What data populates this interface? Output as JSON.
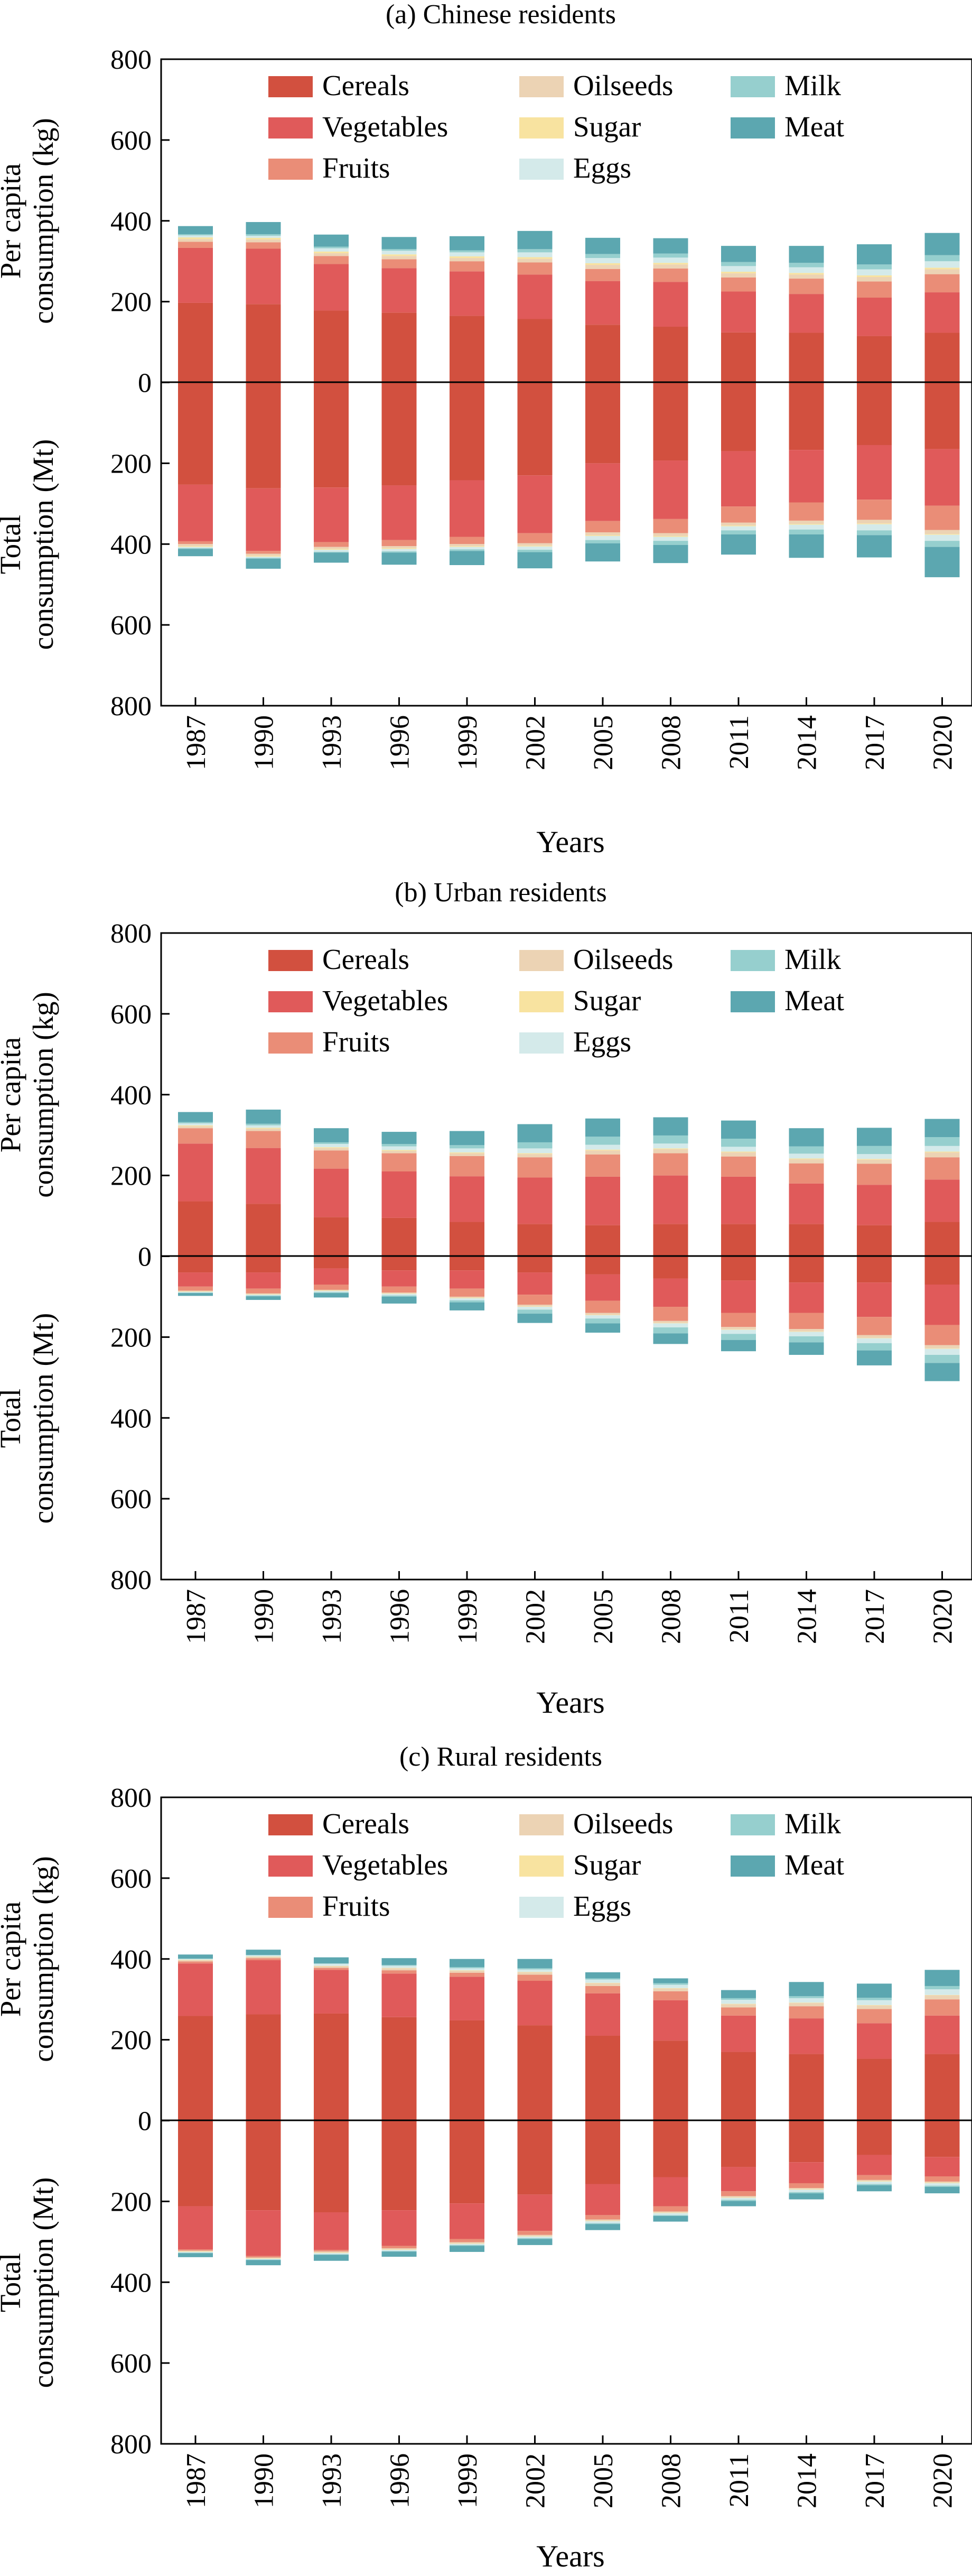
{
  "colors": {
    "Cereals": "#d2503f",
    "Vegetables": "#e05a5a",
    "Fruits": "#ea8d77",
    "Oilseeds": "#ecd3b4",
    "Sugar": "#f8e3a0",
    "Eggs": "#d4eaea",
    "Milk": "#96cfce",
    "Meat": "#5ca7b0"
  },
  "chart_data": [
    {
      "type": "bar",
      "title": "(a) Chinese residents",
      "xlabel": "Years",
      "ylabel_top": [
        "Per capita",
        "consumption (kg)"
      ],
      "ylabel_bottom": [
        "Total",
        "consumption (Mt)"
      ],
      "ylim": [
        -800,
        800
      ],
      "yticks": [
        "800",
        "600",
        "400",
        "200",
        "0",
        "200",
        "400",
        "600",
        "800"
      ],
      "categories": [
        "1987",
        "1990",
        "1993",
        "1996",
        "1999",
        "2002",
        "2005",
        "2008",
        "2011",
        "2014",
        "2017",
        "2020"
      ],
      "legend": [
        "Cereals",
        "Vegetables",
        "Fruits",
        "Oilseeds",
        "Sugar",
        "Eggs",
        "Milk",
        "Meat"
      ],
      "per_capita": [
        {
          "name": "Cereals",
          "values": [
            197,
            194,
            178,
            173,
            165,
            157,
            143,
            138,
            124,
            123,
            115,
            123
          ]
        },
        {
          "name": "Vegetables",
          "values": [
            136,
            137,
            115,
            110,
            110,
            110,
            108,
            111,
            101,
            96,
            95,
            100
          ]
        },
        {
          "name": "Fruits",
          "values": [
            15,
            16,
            20,
            22,
            25,
            30,
            30,
            33,
            35,
            38,
            40,
            45
          ]
        },
        {
          "name": "Oilseeds",
          "values": [
            7,
            7,
            7,
            8,
            8,
            9,
            10,
            10,
            10,
            10,
            11,
            12
          ]
        },
        {
          "name": "Sugar",
          "values": [
            4,
            4,
            4,
            4,
            4,
            4,
            4,
            4,
            4,
            4,
            4,
            4
          ]
        },
        {
          "name": "Eggs",
          "values": [
            5,
            5,
            8,
            9,
            10,
            12,
            13,
            13,
            14,
            14,
            15,
            16
          ]
        },
        {
          "name": "Milk",
          "values": [
            3,
            4,
            4,
            4,
            5,
            8,
            10,
            10,
            10,
            11,
            12,
            15
          ]
        },
        {
          "name": "Meat",
          "values": [
            20,
            30,
            30,
            30,
            35,
            45,
            40,
            38,
            40,
            42,
            50,
            55
          ]
        }
      ],
      "total": [
        {
          "name": "Cereals",
          "values": [
            253,
            262,
            260,
            255,
            242,
            230,
            200,
            193,
            170,
            167,
            155,
            165
          ]
        },
        {
          "name": "Vegetables",
          "values": [
            140,
            155,
            135,
            135,
            140,
            143,
            143,
            145,
            137,
            130,
            135,
            140
          ]
        },
        {
          "name": "Fruits",
          "values": [
            7,
            7,
            12,
            15,
            18,
            25,
            28,
            35,
            40,
            45,
            50,
            60
          ]
        },
        {
          "name": "Oilseeds",
          "values": [
            5,
            5,
            5,
            5,
            5,
            6,
            7,
            7,
            7,
            8,
            9,
            10
          ]
        },
        {
          "name": "Sugar",
          "values": [
            2,
            2,
            2,
            2,
            2,
            2,
            2,
            2,
            2,
            2,
            2,
            2
          ]
        },
        {
          "name": "Eggs",
          "values": [
            3,
            3,
            5,
            6,
            6,
            8,
            10,
            10,
            10,
            12,
            15,
            15
          ]
        },
        {
          "name": "Milk",
          "values": [
            2,
            2,
            2,
            3,
            4,
            6,
            8,
            10,
            10,
            12,
            12,
            15
          ]
        },
        {
          "name": "Meat",
          "values": [
            18,
            25,
            25,
            30,
            35,
            40,
            45,
            45,
            50,
            58,
            55,
            75
          ]
        }
      ]
    },
    {
      "type": "bar",
      "title": "(b) Urban residents",
      "xlabel": "Years",
      "ylabel_top": [
        "Per capita",
        "consumption (kg)"
      ],
      "ylabel_bottom": [
        "Total",
        "consumption (Mt)"
      ],
      "ylim": [
        -800,
        800
      ],
      "yticks": [
        "800",
        "600",
        "400",
        "200",
        "0",
        "200",
        "400",
        "600",
        "800"
      ],
      "categories": [
        "1987",
        "1990",
        "1993",
        "1996",
        "1999",
        "2002",
        "2005",
        "2008",
        "2011",
        "2014",
        "2017",
        "2020"
      ],
      "legend": [
        "Cereals",
        "Vegetables",
        "Fruits",
        "Oilseeds",
        "Sugar",
        "Eggs",
        "Milk",
        "Meat"
      ],
      "per_capita": [
        {
          "name": "Cereals",
          "values": [
            136,
            130,
            97,
            95,
            85,
            80,
            77,
            80,
            80,
            80,
            77,
            85
          ]
        },
        {
          "name": "Vegetables",
          "values": [
            143,
            138,
            120,
            115,
            113,
            115,
            120,
            120,
            117,
            100,
            100,
            105
          ]
        },
        {
          "name": "Fruits",
          "values": [
            38,
            42,
            45,
            45,
            50,
            50,
            55,
            55,
            50,
            50,
            52,
            55
          ]
        },
        {
          "name": "Oilseeds",
          "values": [
            5,
            6,
            6,
            6,
            7,
            8,
            10,
            10,
            10,
            10,
            10,
            12
          ]
        },
        {
          "name": "Sugar",
          "values": [
            2,
            2,
            2,
            2,
            2,
            2,
            2,
            2,
            2,
            2,
            2,
            2
          ]
        },
        {
          "name": "Eggs",
          "values": [
            5,
            6,
            8,
            9,
            10,
            12,
            12,
            12,
            12,
            12,
            12,
            14
          ]
        },
        {
          "name": "Milk",
          "values": [
            3,
            4,
            4,
            6,
            8,
            15,
            20,
            20,
            20,
            18,
            20,
            22
          ]
        },
        {
          "name": "Meat",
          "values": [
            25,
            35,
            35,
            30,
            35,
            45,
            45,
            45,
            45,
            45,
            45,
            45
          ]
        }
      ],
      "total": [
        {
          "name": "Cereals",
          "values": [
            40,
            40,
            30,
            35,
            35,
            40,
            45,
            55,
            60,
            65,
            65,
            70
          ]
        },
        {
          "name": "Vegetables",
          "values": [
            35,
            40,
            40,
            40,
            45,
            55,
            65,
            70,
            80,
            75,
            85,
            100
          ]
        },
        {
          "name": "Fruits",
          "values": [
            10,
            12,
            13,
            15,
            20,
            25,
            30,
            35,
            35,
            40,
            45,
            50
          ]
        },
        {
          "name": "Oilseeds",
          "values": [
            2,
            2,
            2,
            2,
            3,
            4,
            5,
            5,
            6,
            6,
            7,
            8
          ]
        },
        {
          "name": "Sugar",
          "values": [
            1,
            1,
            1,
            1,
            1,
            1,
            1,
            1,
            1,
            1,
            1,
            1
          ]
        },
        {
          "name": "Eggs",
          "values": [
            2,
            2,
            3,
            4,
            5,
            7,
            8,
            10,
            10,
            11,
            12,
            15
          ]
        },
        {
          "name": "Milk",
          "values": [
            1,
            2,
            2,
            3,
            5,
            10,
            12,
            15,
            15,
            15,
            18,
            20
          ]
        },
        {
          "name": "Meat",
          "values": [
            7,
            9,
            11,
            17,
            20,
            23,
            23,
            26,
            28,
            31,
            37,
            45
          ]
        }
      ]
    },
    {
      "type": "bar",
      "title": "(c) Rural residents",
      "xlabel": "Years",
      "ylabel_top": [
        "Per capita",
        "consumption (kg)"
      ],
      "ylabel_bottom": [
        "Total",
        "consumption (Mt)"
      ],
      "ylim": [
        -800,
        800
      ],
      "yticks": [
        "800",
        "600",
        "400",
        "200",
        "0",
        "200",
        "400",
        "600",
        "800"
      ],
      "categories": [
        "1987",
        "1990",
        "1993",
        "1996",
        "1999",
        "2002",
        "2005",
        "2008",
        "2011",
        "2014",
        "2017",
        "2020"
      ],
      "legend": [
        "Cereals",
        "Vegetables",
        "Fruits",
        "Oilseeds",
        "Sugar",
        "Eggs",
        "Milk",
        "Meat"
      ],
      "per_capita": [
        {
          "name": "Cereals",
          "values": [
            259,
            263,
            265,
            256,
            248,
            236,
            210,
            198,
            170,
            165,
            153,
            165
          ]
        },
        {
          "name": "Vegetables",
          "values": [
            130,
            134,
            108,
            108,
            108,
            110,
            105,
            100,
            90,
            88,
            88,
            95
          ]
        },
        {
          "name": "Fruits",
          "values": [
            5,
            5,
            5,
            8,
            10,
            15,
            18,
            22,
            20,
            30,
            35,
            40
          ]
        },
        {
          "name": "Oilseeds",
          "values": [
            3,
            3,
            4,
            5,
            5,
            6,
            7,
            7,
            8,
            8,
            9,
            10
          ]
        },
        {
          "name": "Sugar",
          "values": [
            1,
            1,
            1,
            1,
            1,
            1,
            1,
            1,
            1,
            1,
            1,
            1
          ]
        },
        {
          "name": "Eggs",
          "values": [
            2,
            3,
            5,
            5,
            5,
            6,
            8,
            8,
            10,
            11,
            12,
            14
          ]
        },
        {
          "name": "Milk",
          "values": [
            1,
            1,
            1,
            2,
            3,
            3,
            3,
            4,
            4,
            5,
            6,
            8
          ]
        },
        {
          "name": "Meat",
          "values": [
            10,
            13,
            15,
            17,
            20,
            23,
            15,
            12,
            20,
            35,
            35,
            40
          ]
        }
      ],
      "total": [
        {
          "name": "Cereals",
          "values": [
            212,
            222,
            227,
            222,
            205,
            183,
            157,
            140,
            115,
            103,
            85,
            90
          ]
        },
        {
          "name": "Vegetables",
          "values": [
            107,
            113,
            93,
            88,
            88,
            90,
            77,
            72,
            60,
            52,
            50,
            48
          ]
        },
        {
          "name": "Fruits",
          "values": [
            3,
            4,
            4,
            6,
            8,
            10,
            11,
            13,
            12,
            12,
            12,
            13
          ]
        },
        {
          "name": "Oilseeds",
          "values": [
            2,
            2,
            3,
            3,
            3,
            3,
            3,
            3,
            3,
            3,
            3,
            3
          ]
        },
        {
          "name": "Sugar",
          "values": [
            1,
            1,
            1,
            1,
            1,
            1,
            1,
            1,
            1,
            1,
            1,
            1
          ]
        },
        {
          "name": "Eggs",
          "values": [
            2,
            2,
            3,
            3,
            3,
            4,
            5,
            5,
            5,
            6,
            6,
            6
          ]
        },
        {
          "name": "Milk",
          "values": [
            1,
            1,
            1,
            1,
            2,
            2,
            2,
            2,
            3,
            3,
            3,
            3
          ]
        },
        {
          "name": "Meat",
          "values": [
            10,
            13,
            15,
            13,
            15,
            15,
            15,
            14,
            13,
            15,
            15,
            16
          ]
        }
      ]
    }
  ]
}
